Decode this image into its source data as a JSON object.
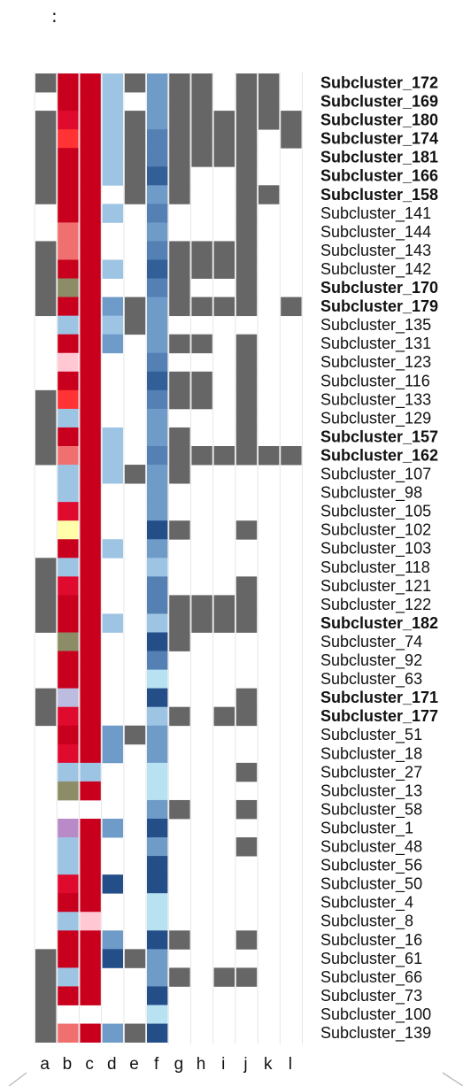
{
  "top_mark": ":",
  "chart_data": {
    "type": "heatmap",
    "title": "",
    "xlabel": "",
    "ylabel": "",
    "columns": [
      "a",
      "b",
      "c",
      "d",
      "e",
      "f",
      "g",
      "h",
      "i",
      "j",
      "k",
      "l"
    ],
    "palette": {
      "0": "#ffffff",
      "G": "#666666",
      "R": "#c8001e",
      "r": "#e0092e",
      "o": "#ff3333",
      "p": "#f07070",
      "k": "#ffc8d2",
      "y": "#ffffaa",
      "v": "#8c8c66",
      "m": "#b88ac8",
      "l": "#bcbce0",
      "L": "#9ec4e4",
      "S": "#a6d0ea",
      "C": "#b8e2f2",
      "M": "#6e9bc8",
      "B": "#5580b4",
      "D": "#335f99",
      "N": "#234e88"
    },
    "rows": [
      {
        "label": "Subcluster_172",
        "bold": true,
        "cells": [
          "G",
          "R",
          "R",
          "L",
          "G",
          "M",
          "G",
          "G",
          "0",
          "G",
          "G",
          "0"
        ]
      },
      {
        "label": "Subcluster_169",
        "bold": true,
        "cells": [
          "0",
          "R",
          "R",
          "L",
          "0",
          "M",
          "G",
          "G",
          "0",
          "G",
          "G",
          "0"
        ]
      },
      {
        "label": "Subcluster_180",
        "bold": true,
        "cells": [
          "G",
          "r",
          "R",
          "L",
          "G",
          "M",
          "G",
          "G",
          "G",
          "G",
          "G",
          "G"
        ]
      },
      {
        "label": "Subcluster_174",
        "bold": true,
        "cells": [
          "G",
          "o",
          "R",
          "L",
          "G",
          "B",
          "G",
          "G",
          "G",
          "G",
          "0",
          "G"
        ]
      },
      {
        "label": "Subcluster_181",
        "bold": true,
        "cells": [
          "G",
          "R",
          "R",
          "L",
          "G",
          "B",
          "G",
          "G",
          "G",
          "G",
          "0",
          "0"
        ]
      },
      {
        "label": "Subcluster_166",
        "bold": true,
        "cells": [
          "G",
          "R",
          "R",
          "L",
          "G",
          "D",
          "G",
          "0",
          "0",
          "G",
          "0",
          "0"
        ]
      },
      {
        "label": "Subcluster_158",
        "bold": true,
        "cells": [
          "G",
          "R",
          "R",
          "0",
          "G",
          "M",
          "G",
          "0",
          "0",
          "G",
          "G",
          "0"
        ]
      },
      {
        "label": "Subcluster_141",
        "bold": false,
        "cells": [
          "0",
          "R",
          "R",
          "L",
          "0",
          "B",
          "0",
          "0",
          "0",
          "G",
          "0",
          "0"
        ]
      },
      {
        "label": "Subcluster_144",
        "bold": false,
        "cells": [
          "0",
          "p",
          "R",
          "0",
          "0",
          "M",
          "0",
          "0",
          "0",
          "G",
          "0",
          "0"
        ]
      },
      {
        "label": "Subcluster_143",
        "bold": false,
        "cells": [
          "G",
          "p",
          "R",
          "0",
          "0",
          "B",
          "G",
          "G",
          "G",
          "G",
          "0",
          "0"
        ]
      },
      {
        "label": "Subcluster_142",
        "bold": false,
        "cells": [
          "G",
          "R",
          "R",
          "L",
          "0",
          "D",
          "G",
          "G",
          "G",
          "G",
          "0",
          "0"
        ]
      },
      {
        "label": "Subcluster_170",
        "bold": true,
        "cells": [
          "G",
          "v",
          "R",
          "0",
          "0",
          "B",
          "G",
          "0",
          "0",
          "G",
          "0",
          "0"
        ]
      },
      {
        "label": "Subcluster_179",
        "bold": true,
        "cells": [
          "G",
          "R",
          "R",
          "M",
          "G",
          "M",
          "G",
          "G",
          "G",
          "G",
          "0",
          "G"
        ]
      },
      {
        "label": "Subcluster_135",
        "bold": false,
        "cells": [
          "0",
          "L",
          "R",
          "L",
          "G",
          "M",
          "0",
          "0",
          "0",
          "0",
          "0",
          "0"
        ]
      },
      {
        "label": "Subcluster_131",
        "bold": false,
        "cells": [
          "0",
          "R",
          "R",
          "M",
          "0",
          "M",
          "G",
          "G",
          "0",
          "G",
          "0",
          "0"
        ]
      },
      {
        "label": "Subcluster_123",
        "bold": false,
        "cells": [
          "0",
          "k",
          "R",
          "0",
          "0",
          "B",
          "0",
          "0",
          "0",
          "G",
          "0",
          "0"
        ]
      },
      {
        "label": "Subcluster_116",
        "bold": false,
        "cells": [
          "0",
          "R",
          "R",
          "0",
          "0",
          "D",
          "G",
          "G",
          "0",
          "G",
          "0",
          "0"
        ]
      },
      {
        "label": "Subcluster_133",
        "bold": false,
        "cells": [
          "G",
          "o",
          "R",
          "0",
          "0",
          "B",
          "G",
          "G",
          "0",
          "G",
          "0",
          "0"
        ]
      },
      {
        "label": "Subcluster_129",
        "bold": false,
        "cells": [
          "G",
          "L",
          "R",
          "0",
          "0",
          "M",
          "0",
          "0",
          "0",
          "G",
          "0",
          "0"
        ]
      },
      {
        "label": "Subcluster_157",
        "bold": true,
        "cells": [
          "G",
          "R",
          "R",
          "L",
          "0",
          "M",
          "G",
          "0",
          "0",
          "G",
          "0",
          "0"
        ]
      },
      {
        "label": "Subcluster_162",
        "bold": true,
        "cells": [
          "G",
          "p",
          "R",
          "L",
          "0",
          "B",
          "G",
          "G",
          "G",
          "G",
          "G",
          "G"
        ]
      },
      {
        "label": "Subcluster_107",
        "bold": false,
        "cells": [
          "0",
          "L",
          "R",
          "L",
          "G",
          "M",
          "G",
          "0",
          "0",
          "0",
          "0",
          "0"
        ]
      },
      {
        "label": "Subcluster_98",
        "bold": false,
        "cells": [
          "0",
          "L",
          "R",
          "0",
          "0",
          "M",
          "0",
          "0",
          "0",
          "0",
          "0",
          "0"
        ]
      },
      {
        "label": "Subcluster_105",
        "bold": false,
        "cells": [
          "0",
          "r",
          "R",
          "0",
          "0",
          "M",
          "0",
          "0",
          "0",
          "0",
          "0",
          "0"
        ]
      },
      {
        "label": "Subcluster_102",
        "bold": false,
        "cells": [
          "0",
          "y",
          "R",
          "0",
          "0",
          "N",
          "G",
          "0",
          "0",
          "G",
          "0",
          "0"
        ]
      },
      {
        "label": "Subcluster_103",
        "bold": false,
        "cells": [
          "0",
          "R",
          "R",
          "L",
          "0",
          "M",
          "0",
          "0",
          "0",
          "0",
          "0",
          "0"
        ]
      },
      {
        "label": "Subcluster_118",
        "bold": false,
        "cells": [
          "G",
          "L",
          "R",
          "0",
          "0",
          "L",
          "0",
          "0",
          "0",
          "0",
          "0",
          "0"
        ]
      },
      {
        "label": "Subcluster_121",
        "bold": false,
        "cells": [
          "G",
          "r",
          "R",
          "0",
          "0",
          "B",
          "0",
          "0",
          "0",
          "G",
          "0",
          "0"
        ]
      },
      {
        "label": "Subcluster_122",
        "bold": false,
        "cells": [
          "G",
          "R",
          "R",
          "0",
          "0",
          "B",
          "G",
          "G",
          "G",
          "G",
          "0",
          "0"
        ]
      },
      {
        "label": "Subcluster_182",
        "bold": true,
        "cells": [
          "G",
          "R",
          "R",
          "L",
          "0",
          "L",
          "G",
          "G",
          "G",
          "G",
          "0",
          "0"
        ]
      },
      {
        "label": "Subcluster_74",
        "bold": false,
        "cells": [
          "0",
          "v",
          "R",
          "0",
          "0",
          "N",
          "G",
          "0",
          "0",
          "0",
          "0",
          "0"
        ]
      },
      {
        "label": "Subcluster_92",
        "bold": false,
        "cells": [
          "0",
          "R",
          "R",
          "0",
          "0",
          "B",
          "0",
          "0",
          "0",
          "0",
          "0",
          "0"
        ]
      },
      {
        "label": "Subcluster_63",
        "bold": false,
        "cells": [
          "0",
          "R",
          "R",
          "0",
          "0",
          "C",
          "0",
          "0",
          "0",
          "0",
          "0",
          "0"
        ]
      },
      {
        "label": "Subcluster_171",
        "bold": true,
        "cells": [
          "G",
          "l",
          "R",
          "0",
          "0",
          "N",
          "0",
          "0",
          "0",
          "G",
          "0",
          "0"
        ]
      },
      {
        "label": "Subcluster_177",
        "bold": true,
        "cells": [
          "G",
          "r",
          "R",
          "0",
          "0",
          "L",
          "G",
          "0",
          "G",
          "G",
          "0",
          "0"
        ]
      },
      {
        "label": "Subcluster_51",
        "bold": false,
        "cells": [
          "0",
          "R",
          "R",
          "M",
          "G",
          "M",
          "0",
          "0",
          "0",
          "0",
          "0",
          "0"
        ]
      },
      {
        "label": "Subcluster_18",
        "bold": false,
        "cells": [
          "0",
          "r",
          "R",
          "M",
          "0",
          "M",
          "0",
          "0",
          "0",
          "0",
          "0",
          "0"
        ]
      },
      {
        "label": "Subcluster_27",
        "bold": false,
        "cells": [
          "0",
          "L",
          "L",
          "0",
          "0",
          "C",
          "0",
          "0",
          "0",
          "G",
          "0",
          "0"
        ]
      },
      {
        "label": "Subcluster_13",
        "bold": false,
        "cells": [
          "0",
          "v",
          "R",
          "0",
          "0",
          "C",
          "0",
          "0",
          "0",
          "0",
          "0",
          "0"
        ]
      },
      {
        "label": "Subcluster_58",
        "bold": false,
        "cells": [
          "0",
          "0",
          "0",
          "0",
          "0",
          "M",
          "G",
          "0",
          "0",
          "G",
          "0",
          "0"
        ]
      },
      {
        "label": "Subcluster_1",
        "bold": false,
        "cells": [
          "0",
          "m",
          "R",
          "M",
          "0",
          "N",
          "0",
          "0",
          "0",
          "0",
          "0",
          "0"
        ]
      },
      {
        "label": "Subcluster_48",
        "bold": false,
        "cells": [
          "0",
          "L",
          "R",
          "0",
          "0",
          "M",
          "0",
          "0",
          "0",
          "G",
          "0",
          "0"
        ]
      },
      {
        "label": "Subcluster_56",
        "bold": false,
        "cells": [
          "0",
          "L",
          "R",
          "0",
          "0",
          "N",
          "0",
          "0",
          "0",
          "0",
          "0",
          "0"
        ]
      },
      {
        "label": "Subcluster_50",
        "bold": false,
        "cells": [
          "0",
          "r",
          "R",
          "N",
          "0",
          "N",
          "0",
          "0",
          "0",
          "0",
          "0",
          "0"
        ]
      },
      {
        "label": "Subcluster_4",
        "bold": false,
        "cells": [
          "0",
          "R",
          "R",
          "0",
          "0",
          "C",
          "0",
          "0",
          "0",
          "0",
          "0",
          "0"
        ]
      },
      {
        "label": "Subcluster_8",
        "bold": false,
        "cells": [
          "0",
          "L",
          "k",
          "0",
          "0",
          "C",
          "0",
          "0",
          "0",
          "0",
          "0",
          "0"
        ]
      },
      {
        "label": "Subcluster_16",
        "bold": false,
        "cells": [
          "0",
          "R",
          "R",
          "M",
          "0",
          "N",
          "G",
          "0",
          "0",
          "G",
          "0",
          "0"
        ]
      },
      {
        "label": "Subcluster_61",
        "bold": false,
        "cells": [
          "G",
          "R",
          "R",
          "N",
          "G",
          "M",
          "0",
          "0",
          "0",
          "0",
          "0",
          "0"
        ]
      },
      {
        "label": "Subcluster_66",
        "bold": false,
        "cells": [
          "G",
          "L",
          "R",
          "0",
          "0",
          "M",
          "G",
          "0",
          "G",
          "G",
          "0",
          "0"
        ]
      },
      {
        "label": "Subcluster_73",
        "bold": false,
        "cells": [
          "G",
          "R",
          "R",
          "0",
          "0",
          "N",
          "0",
          "0",
          "0",
          "0",
          "0",
          "0"
        ]
      },
      {
        "label": "Subcluster_100",
        "bold": false,
        "cells": [
          "G",
          "0",
          "0",
          "0",
          "0",
          "C",
          "0",
          "0",
          "0",
          "0",
          "0",
          "0"
        ]
      },
      {
        "label": "Subcluster_139",
        "bold": false,
        "cells": [
          "G",
          "p",
          "R",
          "M",
          "G",
          "N",
          "0",
          "0",
          "0",
          "0",
          "0",
          "0"
        ]
      }
    ]
  }
}
